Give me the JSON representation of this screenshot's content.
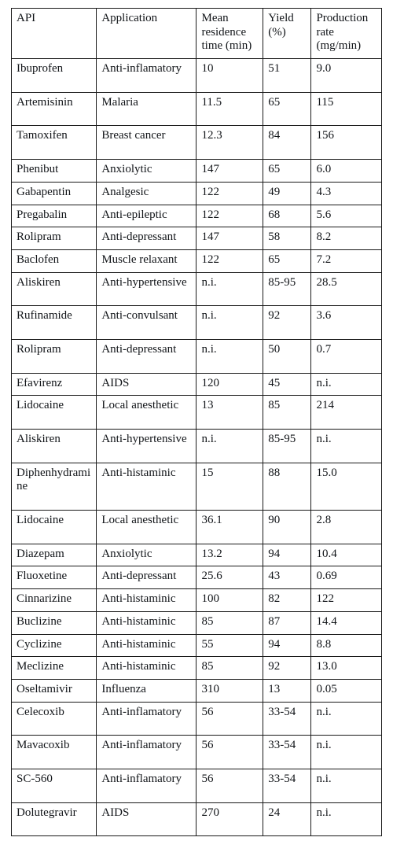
{
  "table": {
    "columns": [
      "API",
      "Application",
      "Mean residence time (min)",
      "Yield (%)",
      "Production rate (mg/min)"
    ],
    "rows": [
      [
        "Ibuprofen",
        "Anti-inflamatory",
        "10",
        "51",
        "9.0"
      ],
      [
        "Artemisinin",
        "Malaria",
        "11.5",
        "65",
        "115"
      ],
      [
        "Tamoxifen",
        "Breast cancer",
        "12.3",
        "84",
        "156"
      ],
      [
        "Phenibut",
        "Anxiolytic",
        "147",
        "65",
        "6.0"
      ],
      [
        "Gabapentin",
        "Analgesic",
        "122",
        "49",
        "4.3"
      ],
      [
        "Pregabalin",
        "Anti-epileptic",
        "122",
        "68",
        "5.6"
      ],
      [
        "Rolipram",
        "Anti-depressant",
        "147",
        "58",
        "8.2"
      ],
      [
        "Baclofen",
        "Muscle relaxant",
        "122",
        "65",
        "7.2"
      ],
      [
        "Aliskiren",
        "Anti-hypertensive",
        "n.i.",
        "85-95",
        "28.5"
      ],
      [
        "Rufinamide",
        "Anti-convulsant",
        "n.i.",
        "92",
        "3.6"
      ],
      [
        "Rolipram",
        "Anti-depressant",
        "n.i.",
        "50",
        "0.7"
      ],
      [
        "Efavirenz",
        "AIDS",
        "120",
        "45",
        "n.i."
      ],
      [
        "Lidocaine",
        "Local anesthetic",
        "13",
        "85",
        "214"
      ],
      [
        "Aliskiren",
        "Anti-hypertensive",
        "n.i.",
        "85-95",
        "n.i."
      ],
      [
        "Diphenhydramine",
        "Anti-histaminic",
        "15",
        "88",
        "15.0"
      ],
      [
        "Lidocaine",
        "Local anesthetic",
        "36.1",
        "90",
        "2.8"
      ],
      [
        "Diazepam",
        "Anxiolytic",
        "13.2",
        "94",
        "10.4"
      ],
      [
        "Fluoxetine",
        "Anti-depressant",
        "25.6",
        "43",
        "0.69"
      ],
      [
        "Cinnarizine",
        "Anti-histaminic",
        "100",
        "82",
        "122"
      ],
      [
        "Buclizine",
        "Anti-histaminic",
        "85",
        "87",
        "14.4"
      ],
      [
        "Cyclizine",
        "Anti-histaminic",
        "55",
        "94",
        "8.8"
      ],
      [
        "Meclizine",
        "Anti-histaminic",
        "85",
        "92",
        "13.0"
      ],
      [
        "Oseltamivir",
        "Influenza",
        "310",
        "13",
        "0.05"
      ],
      [
        "Celecoxib",
        "Anti-inflamatory",
        "56",
        "33-54",
        "n.i."
      ],
      [
        "Mavacoxib",
        "Anti-inflamatory",
        "56",
        "33-54",
        "n.i."
      ],
      [
        "SC-560",
        "Anti-inflamatory",
        "56",
        "33-54",
        "n.i."
      ],
      [
        "Dolutegravir",
        "AIDS",
        "270",
        "24",
        "n.i."
      ]
    ],
    "style": {
      "border_color": "#1a1a1a",
      "text_color": "#111418",
      "background_color": "#ffffff",
      "font_family": "Times New Roman",
      "header_fontsize_pt": 11,
      "body_fontsize_pt": 11,
      "column_widths_pct": [
        23,
        27,
        18,
        13,
        19
      ],
      "tall_rows": [
        0,
        1,
        2,
        8,
        9,
        10,
        12,
        13,
        14,
        15,
        23,
        24,
        25,
        26
      ]
    }
  }
}
